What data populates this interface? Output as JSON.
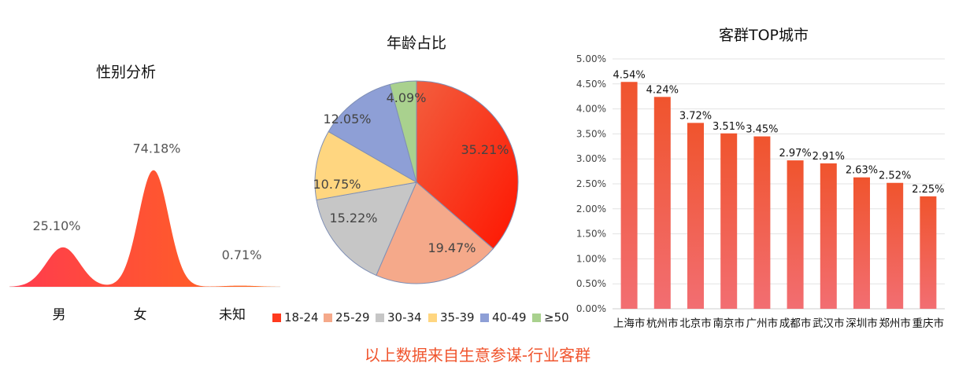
{
  "chart_data": [
    {
      "type": "area",
      "title": "性别分析",
      "categories": [
        "男",
        "女",
        "未知"
      ],
      "values": [
        25.1,
        74.18,
        0.71
      ],
      "value_labels": [
        "25.10%",
        "74.18%",
        "0.71%"
      ],
      "colors": {
        "start": "#FF3B4E",
        "end": "#FF6A1A"
      }
    },
    {
      "type": "pie",
      "title": "年龄占比",
      "legend_position": "bottom",
      "slices": [
        {
          "name": "18-24",
          "value": 35.21,
          "label": "35.21%",
          "color": "#FF3A1E"
        },
        {
          "name": "25-29",
          "value": 19.47,
          "label": "19.47%",
          "color": "#F5A98A"
        },
        {
          "name": "30-34",
          "value": 15.22,
          "label": "15.22%",
          "color": "#C6C6C6"
        },
        {
          "name": "35-39",
          "value": 10.75,
          "label": "10.75%",
          "color": "#FFD680"
        },
        {
          "name": "40-49",
          "value": 12.05,
          "label": "12.05%",
          "color": "#8E9FD6"
        },
        {
          "name": "≥50",
          "value": 4.09,
          "label": "4.09%",
          "color": "#A9D18E"
        }
      ]
    },
    {
      "type": "bar",
      "title": "客群TOP城市",
      "categories": [
        "上海市",
        "杭州市",
        "北京市",
        "南京市",
        "广州市",
        "成都市",
        "武汉市",
        "深圳市",
        "郑州市",
        "重庆市"
      ],
      "values": [
        4.54,
        4.24,
        3.72,
        3.51,
        3.45,
        2.97,
        2.91,
        2.63,
        2.52,
        2.25
      ],
      "value_labels": [
        "4.54%",
        "4.24%",
        "3.72%",
        "3.51%",
        "3.45%",
        "2.97%",
        "2.91%",
        "2.63%",
        "2.52%",
        "2.25%"
      ],
      "ylim": [
        0,
        5
      ],
      "yticks": [
        "0.00%",
        "0.50%",
        "1.00%",
        "1.50%",
        "2.00%",
        "2.50%",
        "3.00%",
        "3.50%",
        "4.00%",
        "4.50%",
        "5.00%"
      ],
      "grid": true,
      "colors": {
        "top": "#F0542D",
        "bottom": "#F26E72"
      }
    }
  ],
  "footer": "以上数据来自生意参谋-行业客群"
}
